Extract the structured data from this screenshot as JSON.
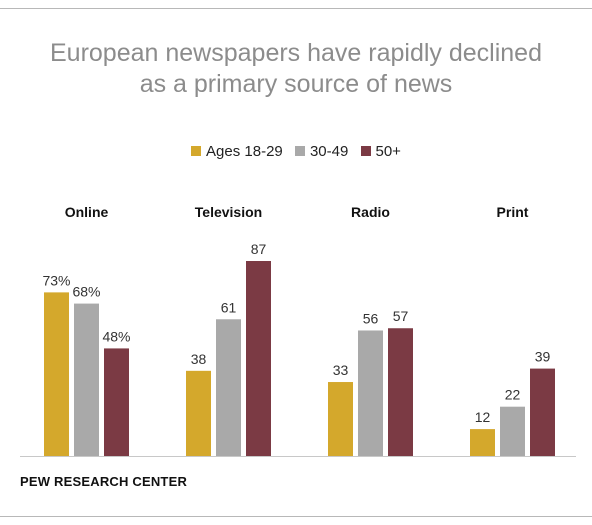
{
  "title_lines": [
    "European newspapers have rapidly declined",
    "as a primary source of news"
  ],
  "source": "PEW RESEARCH CENTER",
  "colors": {
    "ages_18_29": "#d4a82c",
    "ages_30_49": "#a9a9a9",
    "ages_50_plus": "#7b3a44"
  },
  "chart_data": {
    "type": "bar",
    "title": "European newspapers have rapidly declined as a primary source of news",
    "categories": [
      "Online",
      "Television",
      "Radio",
      "Print"
    ],
    "series": [
      {
        "name": "Ages 18-29",
        "values": [
          73,
          38,
          33,
          12
        ],
        "labels": [
          "73%",
          "38",
          "33",
          "12"
        ]
      },
      {
        "name": "30-49",
        "values": [
          68,
          61,
          56,
          22
        ],
        "labels": [
          "68%",
          "61",
          "56",
          "22"
        ]
      },
      {
        "name": "50+",
        "values": [
          48,
          87,
          57,
          39
        ],
        "labels": [
          "48%",
          "87",
          "57",
          "39"
        ]
      }
    ],
    "ylim": [
      0,
      100
    ],
    "legend": "top-center",
    "grid": false
  }
}
